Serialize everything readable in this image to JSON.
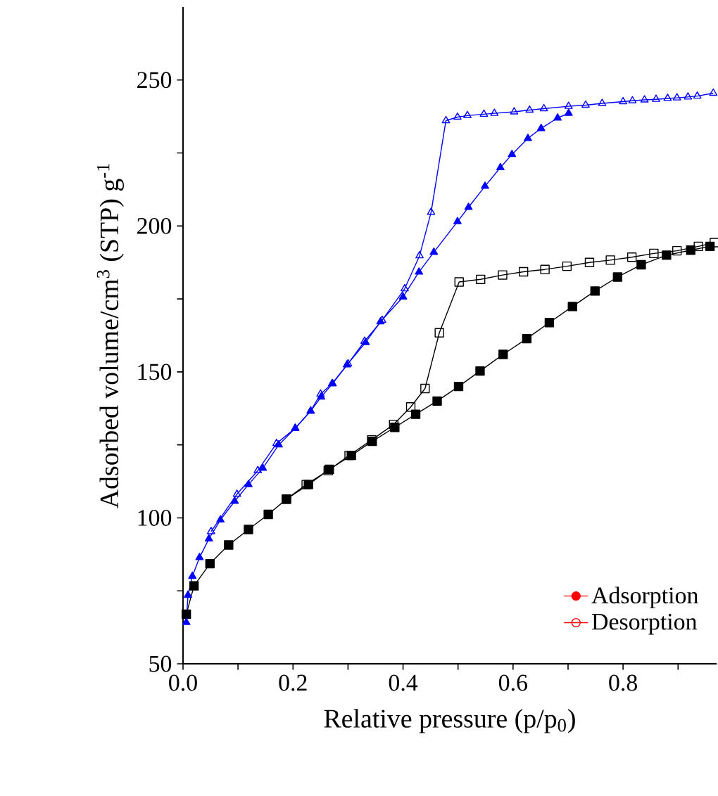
{
  "chart_data": {
    "type": "line",
    "xlabel": "Relative pressure (p/p$_{0}$)",
    "ylabel": "Adsorbed volume/cm$^{3}$ (STP) g$^{-1}$",
    "xlim": [
      0,
      0.97
    ],
    "ylim": [
      50,
      275
    ],
    "xticks": [
      {
        "value": 0,
        "label": "0.0"
      },
      {
        "value": 0.1,
        "label": null
      },
      0.2,
      {
        "value": 0.3,
        "label": null
      },
      0.4,
      {
        "value": 0.5,
        "label": null
      },
      0.6,
      {
        "value": 0.7,
        "label": null
      },
      0.8,
      {
        "value": 0.9,
        "label": null
      }
    ],
    "yticks": [
      50,
      {
        "value": 75,
        "label": null
      },
      100,
      {
        "value": 125,
        "label": null
      },
      150,
      {
        "value": 175,
        "label": null
      },
      200,
      {
        "value": 225,
        "label": null
      },
      250
    ],
    "legend": "bottom right",
    "grid": false,
    "line_style": "solid",
    "series": [
      {
        "color": "#000000",
        "marker": "square",
        "x": [
          0.006,
          0.02,
          0.049,
          0.083,
          0.119,
          0.155,
          0.188,
          0.228,
          0.266,
          0.306,
          0.344,
          0.385,
          0.423,
          0.462,
          0.501,
          0.54,
          0.582,
          0.625,
          0.666,
          0.708,
          0.749,
          0.79,
          0.833,
          0.879,
          0.923,
          0.958
        ],
        "values": [
          67,
          76.7,
          84.3,
          90.7,
          96,
          101.2,
          106.4,
          111.4,
          116.6,
          121.4,
          126.2,
          131,
          135.5,
          140,
          145,
          150.3,
          156,
          161.4,
          166.9,
          172.4,
          177.7,
          182.5,
          186.7,
          190,
          191.7,
          193
        ]
      },
      {
        "color": "#000000",
        "marker": "square",
        "x": [
          0.966,
          0.937,
          0.898,
          0.856,
          0.816,
          0.777,
          0.739,
          0.698,
          0.658,
          0.619,
          0.581,
          0.541,
          0.502,
          0.466,
          0.44,
          0.414,
          0.383,
          0.343,
          0.302,
          0.264,
          0.224,
          0.188
        ],
        "values": [
          194.3,
          193,
          191.5,
          190.6,
          189.3,
          188.3,
          187.5,
          186.2,
          185.1,
          184.3,
          183.2,
          181.7,
          180.8,
          163.4,
          144.3,
          138,
          132,
          126.7,
          121.4,
          116.2,
          111.4,
          106.4
        ]
      },
      {
        "color": "#0000ff",
        "marker": "triangle",
        "x": [
          0.006,
          0.009,
          0.017,
          0.03,
          0.047,
          0.068,
          0.094,
          0.119,
          0.145,
          0.174,
          0.204,
          0.232,
          0.251,
          0.272,
          0.298,
          0.332,
          0.359,
          0.4,
          0.429,
          0.456,
          0.499,
          0.519,
          0.549,
          0.577,
          0.598,
          0.627,
          0.651,
          0.681,
          0.701
        ],
        "values": [
          64.2,
          73.5,
          80,
          86.4,
          92.8,
          99.3,
          105.7,
          111.4,
          117,
          125,
          130.7,
          136.6,
          141.4,
          146,
          152.4,
          160.1,
          167.2,
          175.7,
          184.2,
          191,
          201.5,
          206.4,
          213.6,
          220,
          224.5,
          230,
          233.4,
          237,
          238.6
        ]
      },
      {
        "color": "#0000ff",
        "marker": "triangle",
        "x": [
          0.964,
          0.935,
          0.918,
          0.898,
          0.881,
          0.86,
          0.839,
          0.817,
          0.8,
          0.762,
          0.732,
          0.701,
          0.656,
          0.63,
          0.602,
          0.566,
          0.547,
          0.517,
          0.499,
          0.478,
          0.451,
          0.43,
          0.403,
          0.362,
          0.33,
          0.3,
          0.271,
          0.25,
          0.232,
          0.204,
          0.17,
          0.136,
          0.098,
          0.051
        ],
        "values": [
          245.5,
          244.5,
          244.2,
          243.9,
          243.7,
          243.4,
          243.2,
          242.9,
          242.6,
          242,
          241.4,
          241,
          240.2,
          239.7,
          239.1,
          238.6,
          238.3,
          237.8,
          237.3,
          236.1,
          204.7,
          189.8,
          178.5,
          167.7,
          160.5,
          152.8,
          146,
          142.4,
          136.6,
          130.7,
          125.5,
          116.2,
          108.1,
          95.3
        ]
      },
      {
        "name": "Adsorption",
        "color": "#ff0000",
        "marker": "circle"
      },
      {
        "name": "Desorption",
        "color": "#ff0000",
        "marker": "circle"
      }
    ]
  }
}
